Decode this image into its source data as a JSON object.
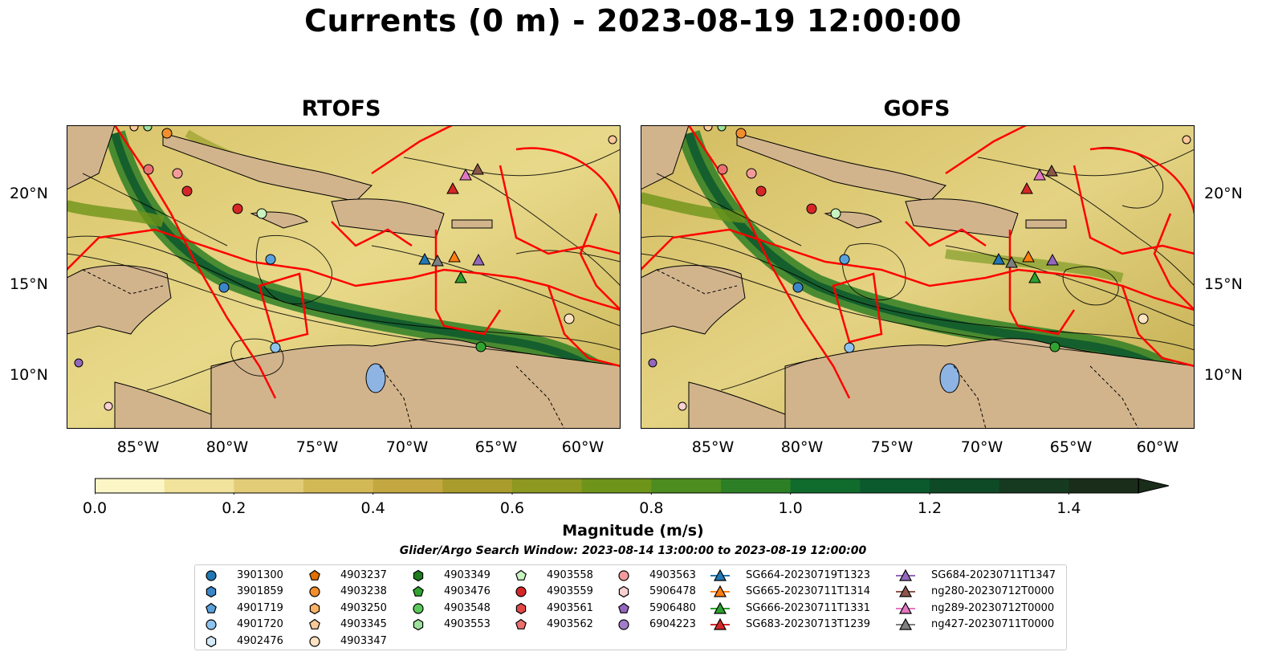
{
  "title": "Currents (0 m) - 2023-08-19 12:00:00",
  "panels": [
    {
      "title": "RTOFS"
    },
    {
      "title": "GOFS"
    }
  ],
  "map": {
    "lat_labels": [
      "20°N",
      "15°N",
      "10°N"
    ],
    "lon_labels": [
      "85°W",
      "80°W",
      "75°W",
      "70°W",
      "65°W",
      "60°W"
    ],
    "land_color": "#d2b48c",
    "boundary_color": "#ff0000",
    "lake_color": "#8eb4e3"
  },
  "colorbar": {
    "label": "Magnitude (m/s)",
    "ticks": [
      "0.0",
      "0.2",
      "0.4",
      "0.6",
      "0.8",
      "1.0",
      "1.2",
      "1.4"
    ],
    "range": [
      0.0,
      1.5
    ],
    "extend": "max",
    "colors": [
      "#fcf6c6",
      "#f1e29c",
      "#e3cc77",
      "#d3b856",
      "#c3a740",
      "#a99c2c",
      "#8d9920",
      "#6e9419",
      "#4d8c1e",
      "#2d7f26",
      "#0f6c2c",
      "#0a5a2e",
      "#0e4a26",
      "#153a20",
      "#1a2d1a"
    ]
  },
  "search_window": "Glider/Argo Search Window: 2023-08-14 13:00:00 to 2023-08-19 12:00:00",
  "legend": {
    "columns": [
      [
        {
          "label": "3901300",
          "marker": "circle",
          "color": "#1f77b4"
        },
        {
          "label": "3901859",
          "marker": "hexagon",
          "color": "#3a86c8"
        },
        {
          "label": "4901719",
          "marker": "pentagon",
          "color": "#5aa0dc"
        },
        {
          "label": "4901720",
          "marker": "circle",
          "color": "#8ec3ee"
        },
        {
          "label": "4902476",
          "marker": "hexagon",
          "color": "#d5eaf8"
        }
      ],
      [
        {
          "label": "4903237",
          "marker": "pentagon",
          "color": "#e07000"
        },
        {
          "label": "4903238",
          "marker": "circle",
          "color": "#f28e2b"
        },
        {
          "label": "4903250",
          "marker": "hexagon",
          "color": "#f9b266"
        },
        {
          "label": "4903345",
          "marker": "pentagon",
          "color": "#fcc898"
        },
        {
          "label": "4903347",
          "marker": "circle",
          "color": "#fde2c4"
        }
      ],
      [
        {
          "label": "4903349",
          "marker": "hexagon",
          "color": "#1e7b1e"
        },
        {
          "label": "4903476",
          "marker": "pentagon",
          "color": "#31a331"
        },
        {
          "label": "4903548",
          "marker": "circle",
          "color": "#5bc85b"
        },
        {
          "label": "4903553",
          "marker": "hexagon",
          "color": "#9ce09c"
        }
      ],
      [
        {
          "label": "4903558",
          "marker": "pentagon",
          "color": "#c8f2c0"
        },
        {
          "label": "4903559",
          "marker": "circle",
          "color": "#d62728"
        },
        {
          "label": "4903561",
          "marker": "hexagon",
          "color": "#e24848"
        },
        {
          "label": "4903562",
          "marker": "pentagon",
          "color": "#ec7070"
        }
      ],
      [
        {
          "label": "4903563",
          "marker": "circle",
          "color": "#f39a9a"
        },
        {
          "label": "5906478",
          "marker": "hexagon",
          "color": "#fad0d0"
        },
        {
          "label": "5906480",
          "marker": "pentagon",
          "color": "#9467bd"
        },
        {
          "label": "6904223",
          "marker": "circle",
          "color": "#a27cc9"
        }
      ],
      [
        {
          "label": "SG664-20230719T1323",
          "marker": "triangle",
          "color": "#1f77b4"
        },
        {
          "label": "SG665-20230711T1314",
          "marker": "triangle",
          "color": "#ff7f0e"
        },
        {
          "label": "SG666-20230711T1331",
          "marker": "triangle",
          "color": "#2ca02c"
        },
        {
          "label": "SG683-20230713T1239",
          "marker": "triangle",
          "color": "#d62728"
        }
      ],
      [
        {
          "label": "SG684-20230711T1347",
          "marker": "triangle",
          "color": "#9467bd"
        },
        {
          "label": "ng280-20230712T0000",
          "marker": "triangle",
          "color": "#8c564b"
        },
        {
          "label": "ng289-20230712T0000",
          "marker": "triangle",
          "color": "#e377c2"
        },
        {
          "label": "ng427-20230711T0000",
          "marker": "triangle",
          "color": "#7f7f7f"
        }
      ]
    ]
  }
}
